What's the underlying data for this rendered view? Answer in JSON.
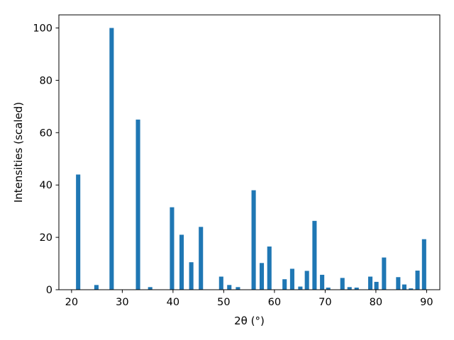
{
  "chart_data": {
    "type": "bar",
    "xlabel": "2θ (°)",
    "ylabel": "Intensities (scaled)",
    "title": "",
    "xlim": [
      17.5,
      92.6
    ],
    "ylim": [
      0,
      105
    ],
    "xticks": [
      20,
      30,
      40,
      50,
      60,
      70,
      80,
      90
    ],
    "yticks": [
      0,
      20,
      40,
      60,
      80,
      100
    ],
    "bar_width": 0.85,
    "color": "#1f77b4",
    "grid": false,
    "x": [
      21.3,
      24.9,
      27.9,
      33.1,
      35.5,
      39.8,
      41.7,
      43.6,
      45.5,
      49.5,
      51.1,
      52.8,
      55.9,
      57.5,
      59.0,
      62.0,
      63.5,
      65.1,
      66.4,
      67.9,
      69.4,
      70.6,
      73.4,
      74.8,
      76.2,
      78.9,
      80.1,
      81.6,
      84.4,
      85.6,
      86.9,
      88.2,
      89.5
    ],
    "values": [
      44,
      1.8,
      100,
      65,
      1,
      31.5,
      21,
      10.5,
      24,
      5,
      1.8,
      1,
      38,
      10.2,
      16.5,
      4,
      8,
      1.2,
      7.2,
      26.3,
      5.7,
      0.8,
      4.5,
      1,
      0.8,
      5,
      3,
      12.3,
      4.8,
      2,
      0.5,
      7.3,
      19.3
    ]
  }
}
